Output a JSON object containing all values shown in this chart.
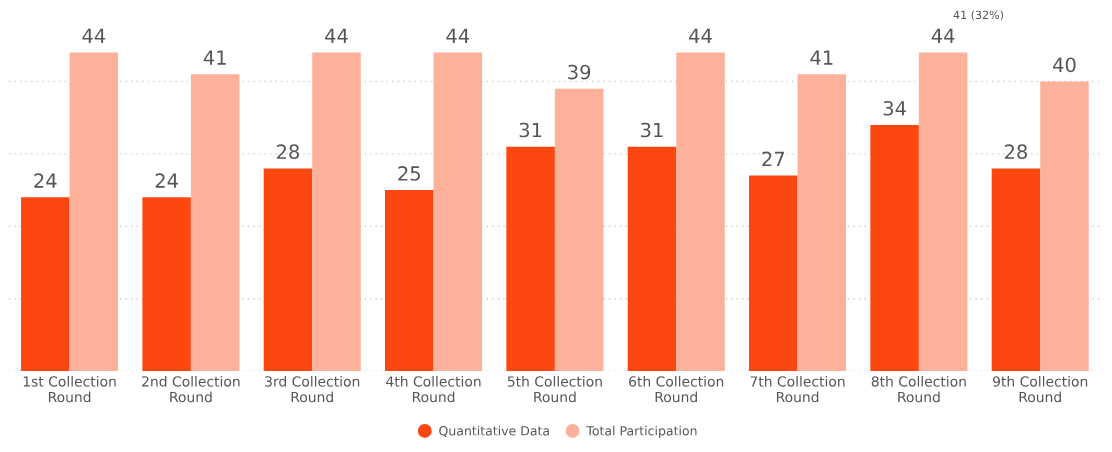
{
  "chart_data": {
    "type": "bar",
    "categories": [
      "1st Collection Round",
      "2nd Collection Round",
      "3rd Collection Round",
      "4th Collection Round",
      "5th Collection Round",
      "6th Collection Round",
      "7th Collection Round",
      "8th Collection Round",
      "9th Collection Round"
    ],
    "series": [
      {
        "name": "Quantitative Data",
        "color": "#fc4711",
        "values": [
          24,
          24,
          28,
          25,
          31,
          31,
          27,
          34,
          28
        ]
      },
      {
        "name": "Total Participation",
        "color": "#fdb19b",
        "values": [
          44,
          41,
          44,
          44,
          39,
          44,
          41,
          44,
          40
        ]
      }
    ],
    "tick_labels": "x",
    "grid": "y",
    "data_labels": true,
    "legend": "bottom",
    "annotations": [
      "41 (32%)"
    ]
  }
}
